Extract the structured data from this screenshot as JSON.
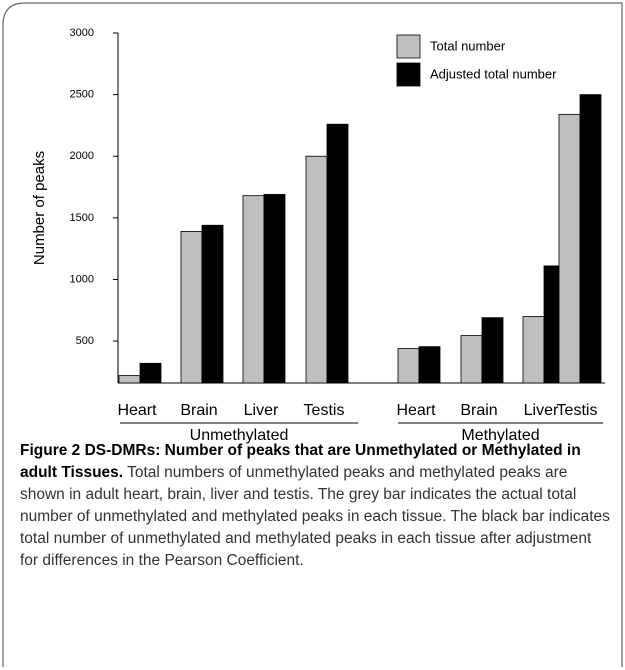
{
  "chart_data": {
    "type": "bar",
    "ylabel": "Number of peaks",
    "groups": [
      {
        "name": "Unmethylated",
        "categories": [
          "Heart",
          "Brain",
          "Liver",
          "Testis"
        ]
      },
      {
        "name": "Methylated",
        "categories": [
          "Heart",
          "Brain",
          "Liver",
          "Testis"
        ]
      }
    ],
    "series": [
      {
        "name": "Total number",
        "color": "#bfbfbf",
        "values": [
          220,
          1390,
          1680,
          2000,
          440,
          545,
          700,
          2340
        ]
      },
      {
        "name": "Adjusted total number",
        "color": "#000000",
        "values": [
          320,
          1440,
          1690,
          2260,
          455,
          690,
          1110,
          2500
        ]
      }
    ],
    "ylim": [
      160,
      3000
    ],
    "yticks": [
      500,
      1000,
      1500,
      2000,
      2500,
      3000
    ],
    "legend": "top-right"
  },
  "caption": {
    "title": "Figure 2 DS-DMRs: Number of peaks that are Unmethylated or Methylated in adult Tissues.",
    "text": "Total numbers of unmethylated peaks and methylated peaks are shown in adult heart, brain, liver and testis. The grey bar indicates the actual total number of unmethylated and methylated peaks in each tissue. The black bar indicates total number of unmethylated and methylated peaks in each tissue after adjustment for differences in the Pearson Coefficient."
  }
}
